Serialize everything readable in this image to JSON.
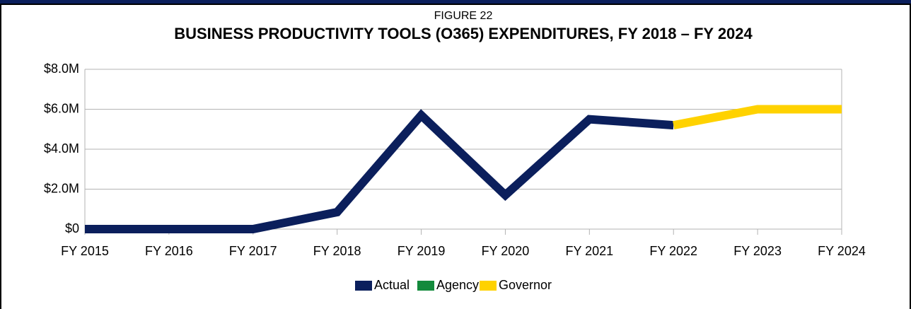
{
  "chart_data": {
    "type": "line",
    "figure_label": "FIGURE 22",
    "title": "BUSINESS PRODUCTIVITY TOOLS (O365) EXPENDITURES, FY 2018 – FY 2024",
    "categories": [
      "FY 2015",
      "FY 2016",
      "FY 2017",
      "FY 2018",
      "FY 2019",
      "FY 2020",
      "FY 2021",
      "FY 2022",
      "FY 2023",
      "FY 2024"
    ],
    "series": [
      {
        "name": "Actual",
        "color": "#0b1f5c",
        "values": [
          0,
          0,
          0,
          850000,
          5700000,
          1700000,
          5500000,
          5200000,
          null,
          null
        ]
      },
      {
        "name": "Agency",
        "color": "#138a3c",
        "values": [
          null,
          null,
          null,
          null,
          null,
          null,
          null,
          null,
          null,
          null
        ]
      },
      {
        "name": "Governor",
        "color": "#ffd200",
        "values": [
          null,
          null,
          null,
          null,
          null,
          null,
          null,
          5200000,
          6000000,
          6000000
        ]
      }
    ],
    "ylim": [
      0,
      8000000
    ],
    "yticks": [
      {
        "value": 0,
        "label": "$0"
      },
      {
        "value": 2000000,
        "label": "$2.0M"
      },
      {
        "value": 4000000,
        "label": "$4.0M"
      },
      {
        "value": 6000000,
        "label": "$6.0M"
      },
      {
        "value": 8000000,
        "label": "$8.0M"
      }
    ],
    "grid": true,
    "legend": "bottom"
  }
}
